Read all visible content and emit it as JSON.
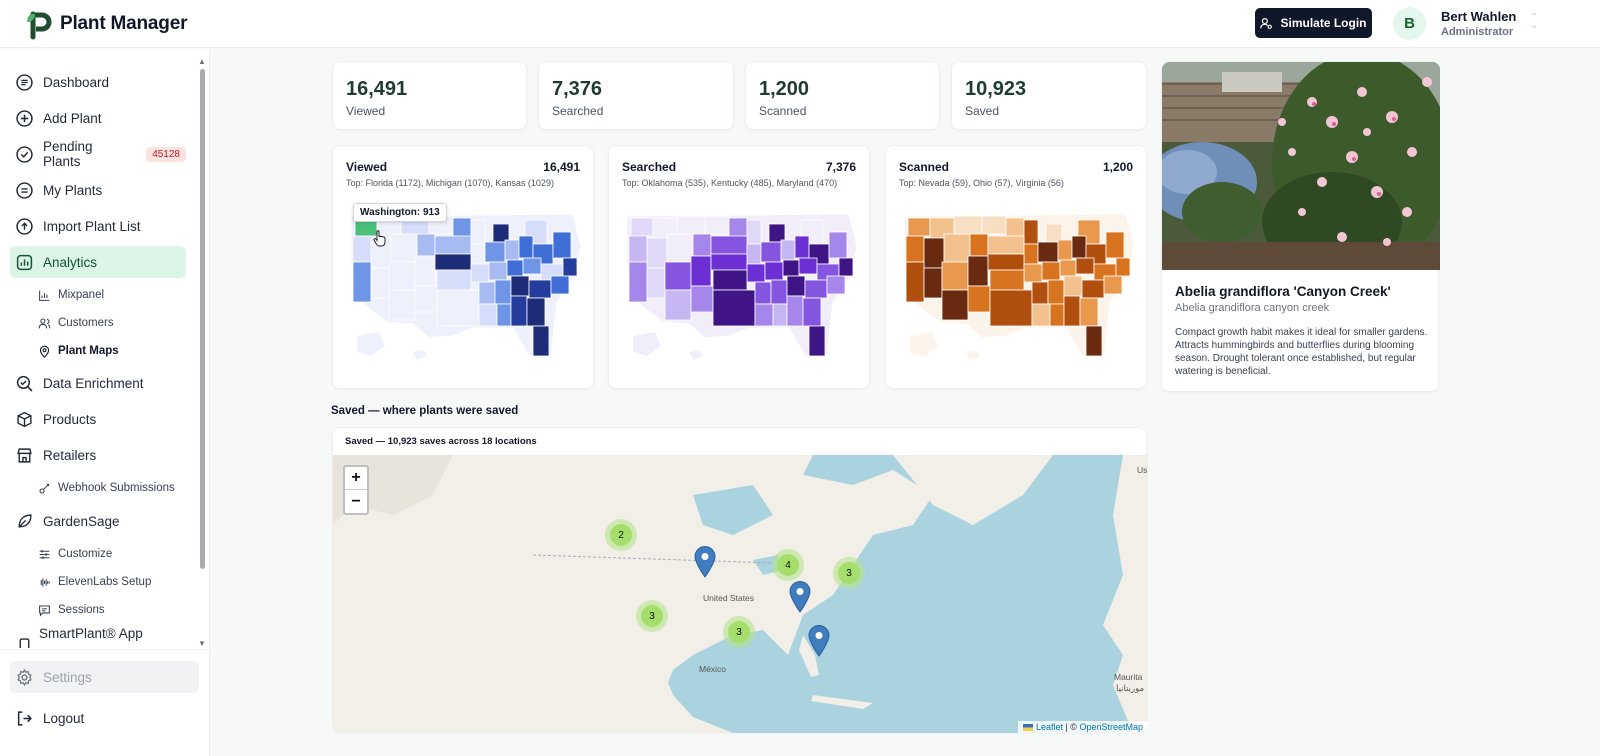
{
  "app": {
    "name": "Plant Manager",
    "simulate_login": "Simulate Login",
    "user": {
      "initial": "B",
      "name": "Bert Wahlen",
      "role": "Administrator"
    }
  },
  "sidebar": {
    "items": [
      {
        "label": "Dashboard",
        "icon": "dashboard-icon"
      },
      {
        "label": "Add Plant",
        "icon": "plus-circle-icon"
      },
      {
        "label": "Pending Plants",
        "icon": "check-circle-icon",
        "badge": "45128"
      },
      {
        "label": "My Plants",
        "icon": "list-icon"
      },
      {
        "label": "Import Plant List",
        "icon": "upload-icon"
      },
      {
        "label": "Analytics",
        "icon": "bar-chart-icon",
        "active": true
      },
      {
        "label": "Data Enrichment",
        "icon": "search-check-icon"
      },
      {
        "label": "Products",
        "icon": "box-icon"
      },
      {
        "label": "Retailers",
        "icon": "store-icon"
      },
      {
        "label": "GardenSage",
        "icon": "leaf-icon"
      },
      {
        "label": "SmartPlant® App",
        "icon": "phone-icon"
      }
    ],
    "analytics_sub": [
      {
        "label": "Mixpanel",
        "icon": "chart-icon"
      },
      {
        "label": "Customers",
        "icon": "users-icon"
      },
      {
        "label": "Plant Maps",
        "icon": "map-pin-icon",
        "active": true
      }
    ],
    "retailers_sub": [
      {
        "label": "Webhook Submissions",
        "icon": "webhook-icon"
      }
    ],
    "gardensage_sub": [
      {
        "label": "Customize",
        "icon": "sliders-icon"
      },
      {
        "label": "ElevenLabs Setup",
        "icon": "audio-icon"
      },
      {
        "label": "Sessions",
        "icon": "message-icon"
      }
    ],
    "settings": "Settings",
    "logout": "Logout"
  },
  "stats": [
    {
      "value": "16,491",
      "label": "Viewed"
    },
    {
      "value": "7,376",
      "label": "Searched"
    },
    {
      "value": "1,200",
      "label": "Scanned"
    },
    {
      "value": "10,923",
      "label": "Saved"
    }
  ],
  "maps": [
    {
      "title": "Viewed",
      "total": "16,491",
      "top": "Top: Florida (1172), Michigan (1070), Kansas (1029)",
      "tooltip": "Washington: 913",
      "palette": [
        "#eef0fb",
        "#d6ddfa",
        "#a7bbf2",
        "#6f95e6",
        "#3f6fd6",
        "#243d9c",
        "#1e2c78"
      ],
      "highlight": "#4ac07a"
    },
    {
      "title": "Searched",
      "total": "7,376",
      "top": "Top: Oklahoma (535), Kentucky (485), Maryland (470)",
      "palette": [
        "#f1eefa",
        "#e0d8f7",
        "#c6b6f1",
        "#a586ea",
        "#8455df",
        "#6b2fd3",
        "#3f1586"
      ]
    },
    {
      "title": "Scanned",
      "total": "1,200",
      "top": "Top: Nevada (59), Ohio (57), Virginia (56)",
      "palette": [
        "#fcf3ea",
        "#f8dfc4",
        "#f2c18e",
        "#e9994e",
        "#d8731f",
        "#b14f0f",
        "#6a2a10"
      ]
    }
  ],
  "plant": {
    "name": "Abelia grandiflora 'Canyon Creek'",
    "scientific": "Abelia grandiflora canyon creek",
    "description": "Compact growth habit makes it ideal for smaller gardens. Attracts hummingbirds and butterflies during blooming season. Drought tolerant once established, but regular watering is beneficial."
  },
  "saved": {
    "heading": "Saved — where plants were saved",
    "subtitle": "Saved — 10,923 saves across 18 locations",
    "zoom_in": "+",
    "zoom_out": "−",
    "clusters": [
      "2",
      "4",
      "3",
      "3",
      "3"
    ],
    "labels": {
      "us": "United States",
      "mx": "México",
      "mauritania": "Maurita",
      "mauritania_ar": "موريتانيا",
      "us_abbr": "Us"
    },
    "attribution": {
      "leaflet": "Leaflet",
      "sep": " | © ",
      "osm": "OpenStreetMap"
    }
  }
}
